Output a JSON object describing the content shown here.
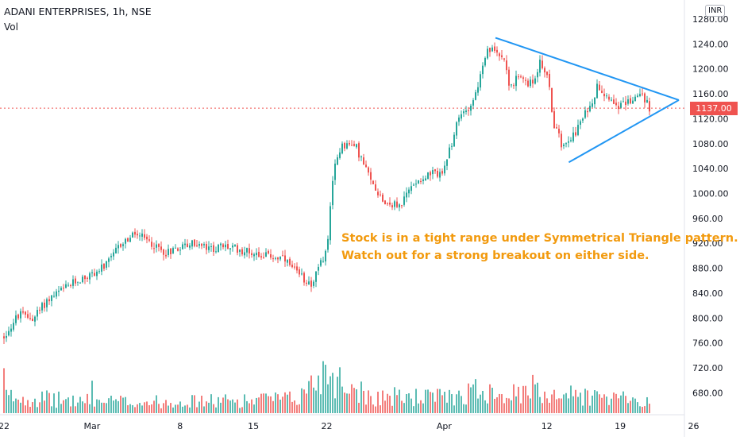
{
  "header": {
    "title": "ADANI ENTERPRISES, 1h, NSE",
    "vol_label": "Vol"
  },
  "currency_badge": "INR",
  "last_price_label": "1137.00",
  "annotation": {
    "line1": "Stock is in a tight range under Symmetrical Triangle pattern.",
    "line2": "Watch out for a strong breakout on either side."
  },
  "colors": {
    "up": "#26a69a",
    "down": "#ef5350",
    "trendline": "#2196f3",
    "annotation": "#f29a0e",
    "price_line": "#ef5350"
  },
  "chart_data": {
    "type": "candlestick",
    "ylim": [
      660,
      1280
    ],
    "x_range": [
      0,
      46
    ],
    "y_ticks": [
      "680.00",
      "720.00",
      "760.00",
      "800.00",
      "840.00",
      "880.00",
      "920.00",
      "960.00",
      "1000.00",
      "1040.00",
      "1080.00",
      "1120.00",
      "1160.00",
      "1200.00",
      "1240.00",
      "1280.00"
    ],
    "x_ticks": [
      {
        "x": 0,
        "label": "22"
      },
      {
        "x": 6,
        "label": "Mar"
      },
      {
        "x": 12,
        "label": "8"
      },
      {
        "x": 17,
        "label": "15"
      },
      {
        "x": 22,
        "label": "22"
      },
      {
        "x": 30,
        "label": "Apr"
      },
      {
        "x": 37,
        "label": "12"
      },
      {
        "x": 42,
        "label": "19"
      },
      {
        "x": 47,
        "label": "26"
      }
    ],
    "price_keypoints": [
      [
        0,
        770
      ],
      [
        1,
        805
      ],
      [
        2,
        800
      ],
      [
        3,
        830
      ],
      [
        4,
        845
      ],
      [
        5,
        860
      ],
      [
        6,
        870
      ],
      [
        7,
        885
      ],
      [
        8,
        920
      ],
      [
        9,
        935
      ],
      [
        10,
        920
      ],
      [
        11,
        905
      ],
      [
        12,
        915
      ],
      [
        13,
        920
      ],
      [
        14,
        910
      ],
      [
        15,
        915
      ],
      [
        16,
        910
      ],
      [
        17,
        905
      ],
      [
        18,
        900
      ],
      [
        19,
        895
      ],
      [
        20,
        870
      ],
      [
        21,
        855
      ],
      [
        22,
        910
      ],
      [
        22.5,
        1040
      ],
      [
        23,
        1080
      ],
      [
        24,
        1075
      ],
      [
        25,
        1020
      ],
      [
        26,
        985
      ],
      [
        27,
        980
      ],
      [
        28,
        1020
      ],
      [
        29,
        1030
      ],
      [
        30,
        1035
      ],
      [
        30.5,
        1080
      ],
      [
        31,
        1120
      ],
      [
        32,
        1150
      ],
      [
        33,
        1230
      ],
      [
        34,
        1225
      ],
      [
        34.5,
        1170
      ],
      [
        35,
        1185
      ],
      [
        36,
        1175
      ],
      [
        36.5,
        1210
      ],
      [
        37,
        1195
      ],
      [
        37.5,
        1110
      ],
      [
        38,
        1080
      ],
      [
        39,
        1100
      ],
      [
        40,
        1145
      ],
      [
        40.5,
        1175
      ],
      [
        41,
        1160
      ],
      [
        42,
        1140
      ],
      [
        42.7,
        1150
      ],
      [
        43.5,
        1160
      ],
      [
        44,
        1137
      ]
    ],
    "volume_profile": [
      [
        0,
        30
      ],
      [
        5,
        22
      ],
      [
        10,
        20
      ],
      [
        15,
        22
      ],
      [
        20,
        25
      ],
      [
        22,
        80
      ],
      [
        23,
        55
      ],
      [
        25,
        30
      ],
      [
        30,
        28
      ],
      [
        33,
        45
      ],
      [
        35,
        32
      ],
      [
        37,
        38
      ],
      [
        40,
        30
      ],
      [
        44,
        20
      ]
    ],
    "volume_max_reference": 160,
    "trendlines": [
      {
        "name": "upper",
        "from": [
          33.5,
          1250
        ],
        "to": [
          46,
          1150
        ]
      },
      {
        "name": "lower",
        "from": [
          38.5,
          1050
        ],
        "to": [
          46,
          1150
        ]
      }
    ],
    "last_price": 1137
  }
}
